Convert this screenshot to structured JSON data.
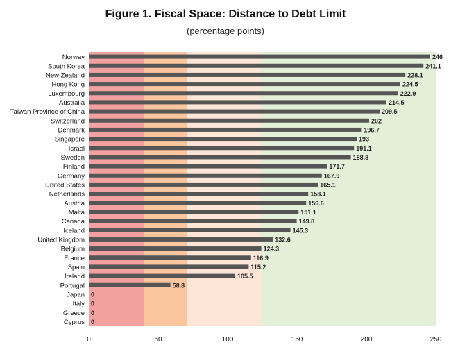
{
  "chart_data": {
    "type": "bar",
    "orientation": "horizontal",
    "title": "Figure 1. Fiscal Space: Distance to Debt Limit",
    "subtitle": "(percentage points)",
    "xlim": [
      0,
      250
    ],
    "xticks": [
      "0",
      "50",
      "100",
      "150",
      "200",
      "250"
    ],
    "categories": [
      "Norway",
      "South Korea",
      "New Zealand",
      "Hong Kong",
      "Luxembourg",
      "Australia",
      "Taiwan Province of China",
      "Switzerland",
      "Denmark",
      "Singapore",
      "Israel",
      "Sweden",
      "Finland",
      "Germany",
      "United States",
      "Netherlands",
      "Austria",
      "Malta",
      "Canada",
      "Iceland",
      "United Kingdom",
      "Belgium",
      "France",
      "Spain",
      "Ireland",
      "Portugal",
      "Japan",
      "Italy",
      "Greece",
      "Cyprus"
    ],
    "values": [
      246,
      241.1,
      228.1,
      224.5,
      222.9,
      214.5,
      209.5,
      202,
      196.7,
      193,
      191.1,
      188.8,
      171.7,
      167.9,
      165.1,
      158.1,
      156.6,
      151.1,
      149.8,
      145.3,
      132.6,
      124.3,
      116.9,
      115.2,
      105.5,
      58.8,
      0,
      0,
      0,
      0
    ],
    "value_labels": [
      "246",
      "241.1",
      "228.1",
      "224.5",
      "222.9",
      "214.5",
      "209.5",
      "202",
      "196.7",
      "193",
      "191.1",
      "188.8",
      "171.7",
      "167.9",
      "165.1",
      "158.1",
      "156.6",
      "151.1",
      "149.8",
      "145.3",
      "132.6",
      "124.3",
      "116.9",
      "115.2",
      "105.5",
      "58.8",
      "0",
      "0",
      "0",
      "0"
    ],
    "background_zones": [
      {
        "from": 0,
        "to": 40,
        "color": "#f2a0a0"
      },
      {
        "from": 40,
        "to": 71,
        "color": "#fbc59e"
      },
      {
        "from": 71,
        "to": 124,
        "color": "#fde6d8"
      },
      {
        "from": 124,
        "to": 250,
        "color": "#e4efd9"
      }
    ],
    "bar_color": "#555555",
    "grid": false
  }
}
